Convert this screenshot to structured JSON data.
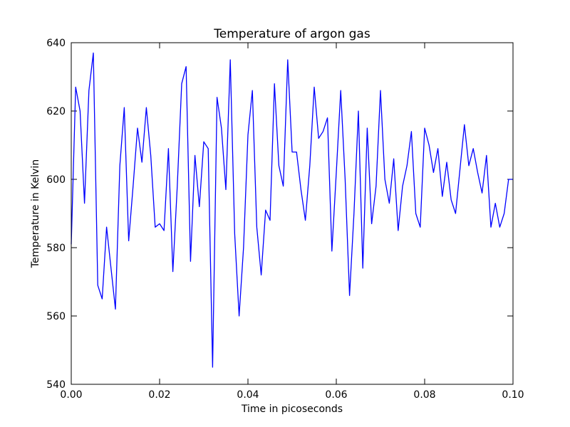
{
  "chart_data": {
    "type": "line",
    "title": "Temperature of argon gas",
    "xlabel": "Time in picoseconds",
    "ylabel": "Temperature in Kelvin",
    "xlim": [
      0.0,
      0.1
    ],
    "ylim": [
      540,
      640
    ],
    "x_ticks": [
      "0.00",
      "0.02",
      "0.04",
      "0.06",
      "0.08",
      "0.10"
    ],
    "y_ticks": [
      "540",
      "560",
      "580",
      "600",
      "620",
      "640"
    ],
    "grid": false,
    "line_color": "#0000ff",
    "series": [
      {
        "x": [
          0.0,
          0.001,
          0.002,
          0.003,
          0.004,
          0.005,
          0.006,
          0.007,
          0.008,
          0.009,
          0.01,
          0.011,
          0.012,
          0.013,
          0.014,
          0.015,
          0.016,
          0.017,
          0.018,
          0.019,
          0.02,
          0.021,
          0.022,
          0.023,
          0.024,
          0.025,
          0.026,
          0.027,
          0.028,
          0.029,
          0.03,
          0.031,
          0.032,
          0.033,
          0.034,
          0.035,
          0.036,
          0.037,
          0.038,
          0.039,
          0.04,
          0.041,
          0.042,
          0.043,
          0.044,
          0.045,
          0.046,
          0.047,
          0.048,
          0.049,
          0.05,
          0.051,
          0.052,
          0.053,
          0.054,
          0.055,
          0.056,
          0.057,
          0.058,
          0.059,
          0.06,
          0.061,
          0.062,
          0.063,
          0.064,
          0.065,
          0.066,
          0.067,
          0.068,
          0.069,
          0.07,
          0.071,
          0.072,
          0.073,
          0.074,
          0.075,
          0.076,
          0.077,
          0.078,
          0.079,
          0.08,
          0.081,
          0.082,
          0.083,
          0.084,
          0.085,
          0.086,
          0.087,
          0.088,
          0.089,
          0.09,
          0.091,
          0.092,
          0.093,
          0.094,
          0.095,
          0.096,
          0.097,
          0.098,
          0.099,
          0.1
        ],
        "y": [
          581,
          627,
          620,
          593,
          626,
          637,
          569,
          565,
          586,
          574,
          562,
          604,
          621,
          582,
          598,
          615,
          605,
          621,
          607,
          586,
          587,
          585,
          609,
          573,
          598,
          628,
          633,
          576,
          607,
          592,
          611,
          609,
          545,
          624,
          615,
          597,
          635,
          584,
          560,
          580,
          613,
          626,
          586,
          572,
          591,
          588,
          628,
          604,
          598,
          635,
          608,
          608,
          597,
          588,
          604,
          627,
          612,
          614,
          618,
          579,
          602,
          626,
          600,
          566,
          590,
          620,
          574,
          615,
          587,
          598,
          626,
          600,
          593,
          606,
          585,
          598,
          604,
          614,
          590,
          586,
          615,
          610,
          602,
          609,
          595,
          605,
          594,
          590,
          603,
          616,
          604,
          609,
          602,
          596,
          607,
          586,
          593,
          586,
          590,
          600,
          600
        ]
      }
    ]
  }
}
